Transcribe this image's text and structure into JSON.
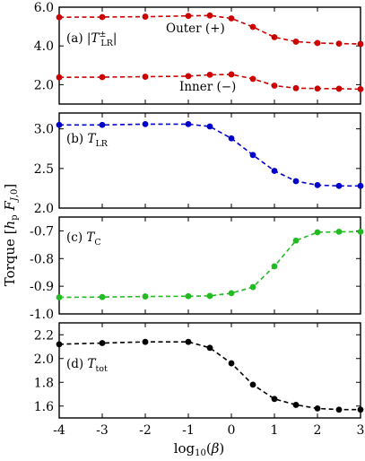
{
  "shared": {
    "xlabel": "log₁₀(β)",
    "ylabel": "Torque [hₚ Fⱼ,₀]",
    "xlim": [
      -4,
      3
    ],
    "xticks": [
      -4,
      -3,
      -2,
      -1,
      0,
      1,
      2,
      3
    ],
    "xtick_labels": [
      "-4",
      "-3",
      "-2",
      "-1",
      "0",
      "1",
      "2",
      "3"
    ]
  },
  "chart_data": [
    {
      "type": "line",
      "panel_label": "(a) |T±LR|",
      "ylim": [
        1.0,
        6.0
      ],
      "yticks": [
        2.0,
        4.0,
        6.0
      ],
      "ytick_labels": [
        "2.0",
        "4.0",
        "6.0"
      ],
      "x": [
        -4,
        -3,
        -2,
        -1,
        -0.5,
        0,
        0.5,
        1,
        1.5,
        2,
        2.5,
        3
      ],
      "series": [
        {
          "name": "Outer (+)",
          "color": "#cc0000",
          "values": [
            5.48,
            5.49,
            5.51,
            5.55,
            5.57,
            5.42,
            4.98,
            4.45,
            4.22,
            4.15,
            4.12,
            4.1
          ]
        },
        {
          "name": "Inner (−)",
          "color": "#cc0000",
          "values": [
            2.38,
            2.39,
            2.41,
            2.44,
            2.51,
            2.53,
            2.3,
            1.95,
            1.82,
            1.8,
            1.79,
            1.77
          ]
        }
      ]
    },
    {
      "type": "line",
      "panel_label": "(b) T_LR",
      "ylim": [
        2.0,
        3.2
      ],
      "yticks": [
        2.0,
        2.5,
        3.0
      ],
      "ytick_labels": [
        "2.0",
        "2.5",
        "3.0"
      ],
      "x": [
        -4,
        -3,
        -2,
        -1,
        -0.5,
        0,
        0.5,
        1,
        1.5,
        2,
        2.5,
        3
      ],
      "series": [
        {
          "name": "",
          "color": "#0000cc",
          "values": [
            3.05,
            3.05,
            3.06,
            3.06,
            3.03,
            2.88,
            2.67,
            2.47,
            2.34,
            2.29,
            2.28,
            2.28
          ]
        }
      ]
    },
    {
      "type": "line",
      "panel_label": "(c) T_C",
      "ylim": [
        -1.0,
        -0.65
      ],
      "yticks": [
        -1.0,
        -0.9,
        -0.8,
        -0.7
      ],
      "ytick_labels": [
        "-1.0",
        "-0.9",
        "-0.8",
        "-0.7"
      ],
      "x": [
        -4,
        -3,
        -2,
        -1,
        -0.5,
        0,
        0.5,
        1,
        1.5,
        2,
        2.5,
        3
      ],
      "series": [
        {
          "name": "",
          "color": "#22bb22",
          "values": [
            -0.94,
            -0.939,
            -0.937,
            -0.936,
            -0.935,
            -0.925,
            -0.903,
            -0.828,
            -0.735,
            -0.705,
            -0.703,
            -0.703
          ]
        }
      ]
    },
    {
      "type": "line",
      "panel_label": "(d) T_tot",
      "ylim": [
        1.5,
        2.3
      ],
      "yticks": [
        1.6,
        1.8,
        2.0,
        2.2
      ],
      "ytick_labels": [
        "1.6",
        "1.8",
        "2.0",
        "2.2"
      ],
      "x": [
        -4,
        -3,
        -2,
        -1,
        -0.5,
        0,
        0.5,
        1,
        1.5,
        2,
        2.5,
        3
      ],
      "series": [
        {
          "name": "",
          "color": "#000000",
          "values": [
            2.12,
            2.13,
            2.14,
            2.14,
            2.09,
            1.96,
            1.78,
            1.66,
            1.61,
            1.58,
            1.57,
            1.57
          ]
        }
      ]
    }
  ]
}
